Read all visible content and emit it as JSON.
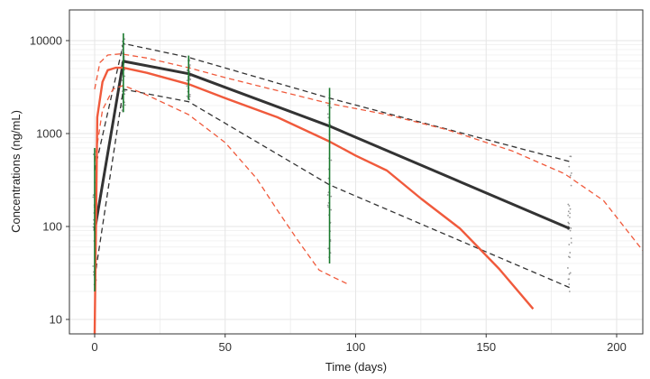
{
  "chart_data": {
    "type": "line",
    "title": "",
    "xlabel": "Time (days)",
    "ylabel": "Concentrations (ng/mL)",
    "xlim": [
      -10,
      210
    ],
    "ylim": [
      7,
      15000
    ],
    "yscale": "log",
    "x_ticks": [
      0,
      50,
      100,
      150,
      200
    ],
    "x_tick_labels": [
      "0",
      "50",
      "100",
      "150",
      "200"
    ],
    "y_ticks": [
      10,
      100,
      1000,
      10000
    ],
    "y_tick_labels": [
      "10",
      "100",
      "1000",
      "10000"
    ],
    "grid": true,
    "colors": {
      "observed": "#333333",
      "simulated": "#f05a3c",
      "observed_bar": "#1a7a2e",
      "points": "#9a9a9a",
      "grid": "#e6e6e6"
    },
    "series": [
      {
        "name": "observed-median",
        "role": "median",
        "source": "observed",
        "style": "solid",
        "points": [
          [
            0,
            90
          ],
          [
            11,
            6000
          ],
          [
            36,
            4400
          ],
          [
            90,
            1200
          ],
          [
            182,
            95
          ]
        ]
      },
      {
        "name": "observed-upper",
        "role": "upper",
        "source": "observed",
        "style": "dashed",
        "points": [
          [
            0,
            400
          ],
          [
            11,
            9300
          ],
          [
            36,
            6600
          ],
          [
            90,
            2400
          ],
          [
            182,
            500
          ]
        ]
      },
      {
        "name": "observed-lower",
        "role": "lower",
        "source": "observed",
        "style": "dashed",
        "points": [
          [
            0,
            28
          ],
          [
            11,
            3000
          ],
          [
            36,
            2200
          ],
          [
            90,
            280
          ],
          [
            182,
            22
          ]
        ]
      },
      {
        "name": "simulated-median",
        "role": "median",
        "source": "simulated",
        "style": "solid",
        "points": [
          [
            0,
            0.0
          ],
          [
            1,
            1500
          ],
          [
            3,
            3600
          ],
          [
            5,
            4800
          ],
          [
            8,
            5100
          ],
          [
            11,
            5100
          ],
          [
            20,
            4500
          ],
          [
            36,
            3400
          ],
          [
            50,
            2400
          ],
          [
            70,
            1500
          ],
          [
            90,
            820
          ],
          [
            100,
            580
          ],
          [
            112,
            400
          ],
          [
            125,
            200
          ],
          [
            140,
            95
          ],
          [
            155,
            35
          ],
          [
            168,
            13
          ]
        ]
      },
      {
        "name": "simulated-upper",
        "role": "upper",
        "source": "simulated",
        "style": "dashed",
        "points": [
          [
            0,
            3000
          ],
          [
            2,
            5800
          ],
          [
            5,
            7000
          ],
          [
            10,
            7200
          ],
          [
            20,
            6500
          ],
          [
            36,
            5100
          ],
          [
            50,
            4000
          ],
          [
            70,
            2900
          ],
          [
            90,
            2100
          ],
          [
            112,
            1600
          ],
          [
            135,
            1100
          ],
          [
            160,
            650
          ],
          [
            180,
            370
          ],
          [
            195,
            190
          ],
          [
            210,
            55
          ]
        ]
      },
      {
        "name": "simulated-lower",
        "role": "lower",
        "source": "simulated",
        "style": "dashed",
        "points": [
          [
            0,
            500
          ],
          [
            3,
            1800
          ],
          [
            7,
            3000
          ],
          [
            11,
            3300
          ],
          [
            20,
            2600
          ],
          [
            36,
            1600
          ],
          [
            50,
            800
          ],
          [
            62,
            330
          ],
          [
            70,
            150
          ],
          [
            78,
            70
          ],
          [
            86,
            34
          ],
          [
            92,
            28
          ],
          [
            97,
            24
          ]
        ]
      }
    ],
    "observation_times": [
      0,
      11,
      36,
      90,
      182
    ],
    "observation_ranges": [
      [
        20,
        700
      ],
      [
        1700,
        12000
      ],
      [
        2300,
        6900
      ],
      [
        40,
        3100
      ],
      [
        20,
        650
      ]
    ]
  }
}
